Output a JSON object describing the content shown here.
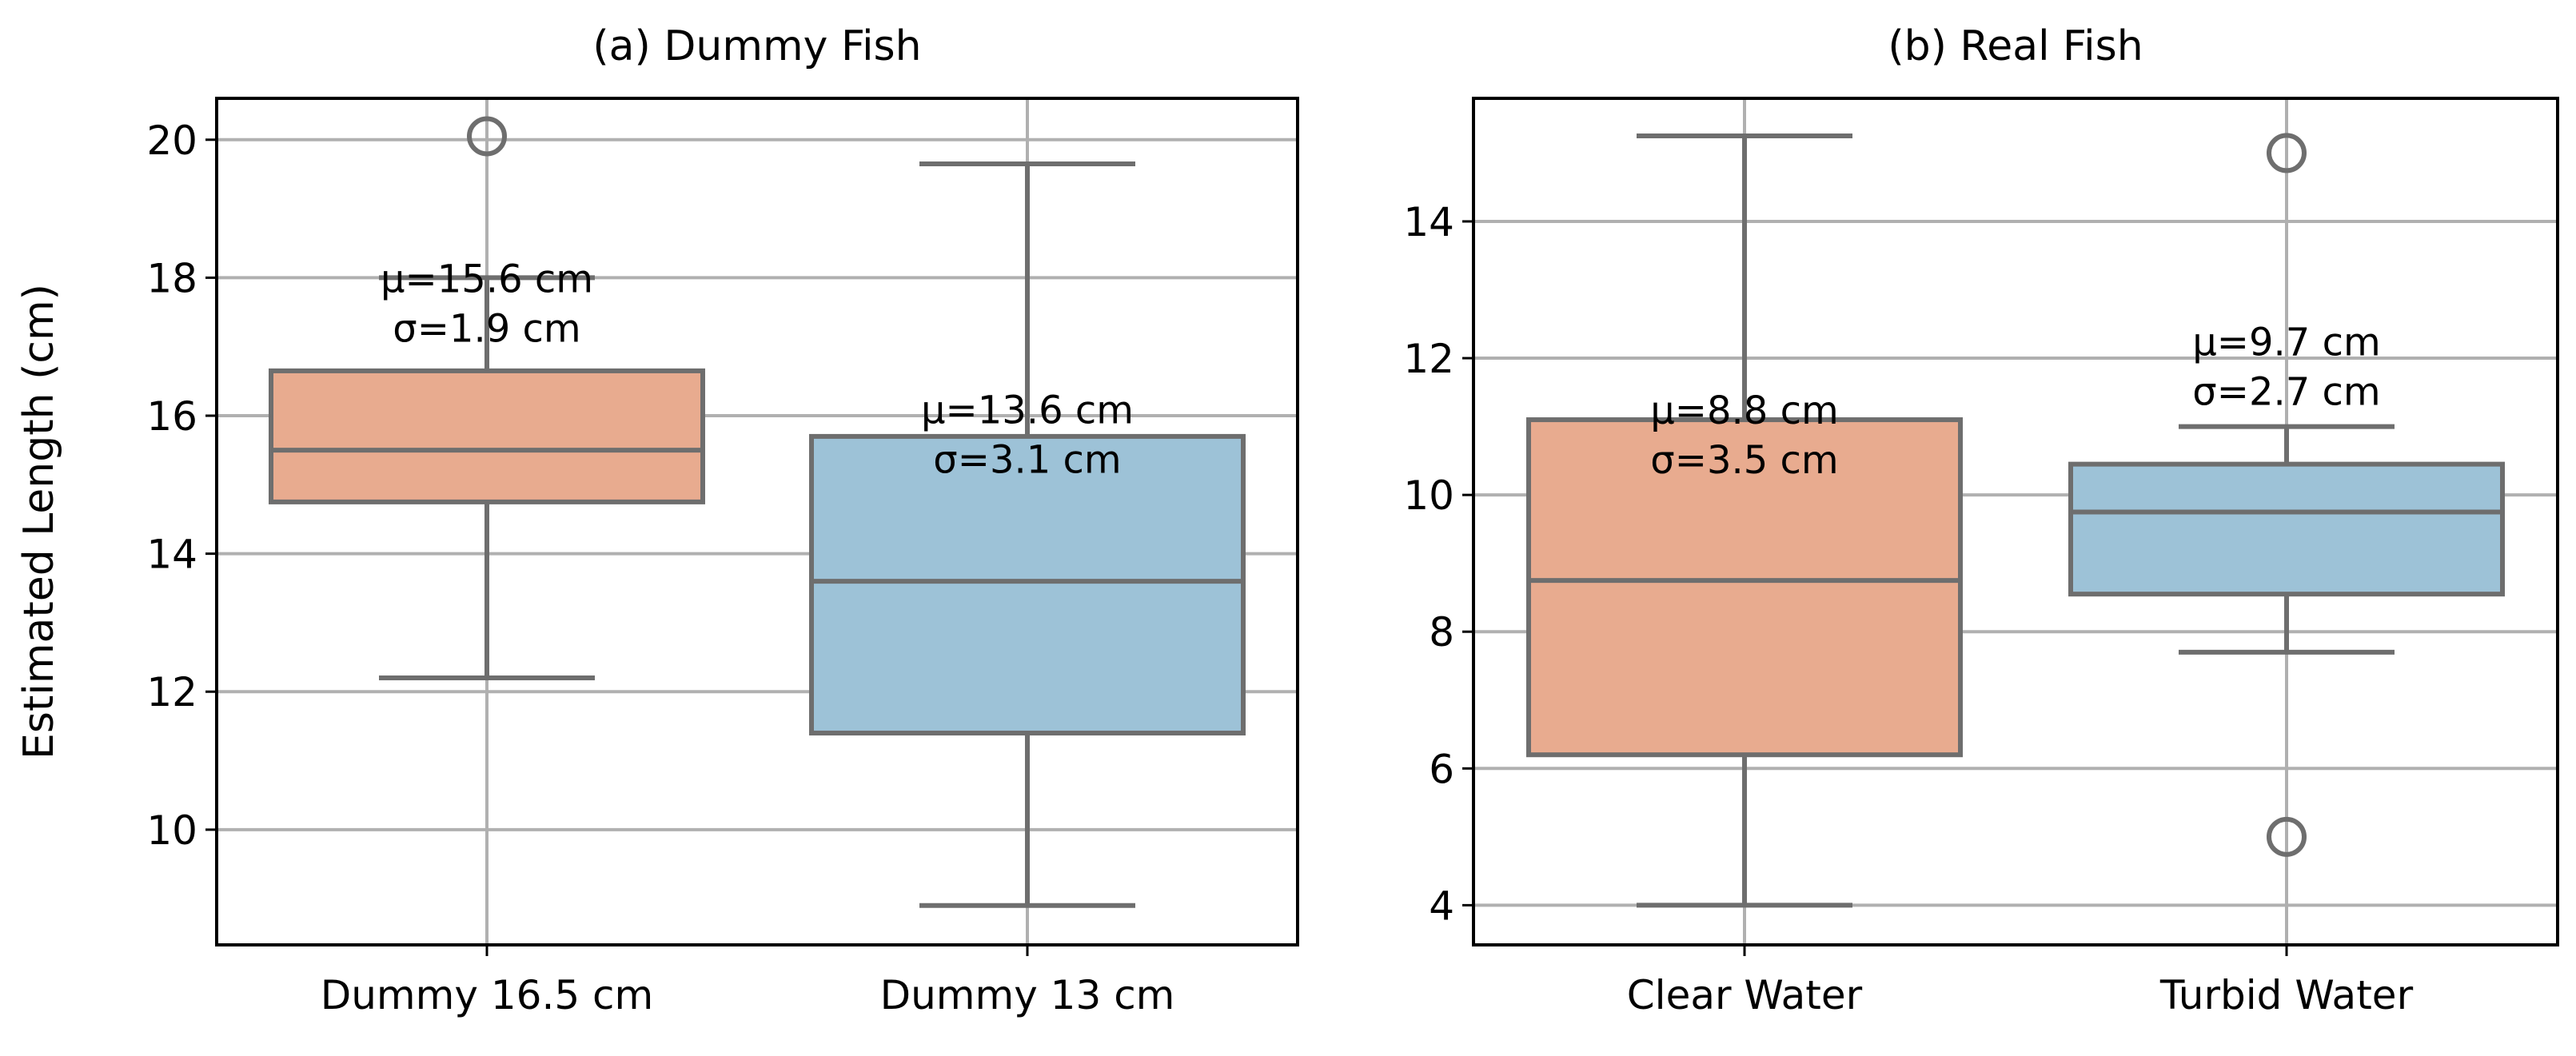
{
  "chart_data": [
    {
      "type": "box",
      "title": "(a) Dummy Fish",
      "ylabel": "Estimated Length (cm)",
      "categories": [
        "Dummy 16.5 cm",
        "Dummy 13 cm"
      ],
      "colors": [
        "#e8ab8f",
        "#9dc2d7"
      ],
      "boxes": [
        {
          "whislo": 12.2,
          "q1": 14.75,
          "median": 15.5,
          "q3": 16.65,
          "whishi": 18.0,
          "fliers": [
            20.05
          ]
        },
        {
          "whislo": 8.9,
          "q1": 11.4,
          "median": 13.6,
          "q3": 15.7,
          "whishi": 19.65,
          "fliers": []
        }
      ],
      "annotations": [
        [
          "μ=15.6 cm",
          "σ=1.9 cm"
        ],
        [
          "μ=13.6 cm",
          "σ=3.1 cm"
        ]
      ],
      "ylim": [
        8.33,
        20.6
      ],
      "yticks": [
        10,
        12,
        14,
        16,
        18,
        20
      ],
      "grid": true
    },
    {
      "type": "box",
      "title": "(b) Real Fish",
      "categories": [
        "Clear Water",
        "Turbid Water"
      ],
      "colors": [
        "#e8ab8f",
        "#9dc2d7"
      ],
      "boxes": [
        {
          "whislo": 4.0,
          "q1": 6.2,
          "median": 8.75,
          "q3": 11.1,
          "whishi": 15.25,
          "fliers": []
        },
        {
          "whislo": 7.7,
          "q1": 8.55,
          "median": 9.75,
          "q3": 10.45,
          "whishi": 11.0,
          "fliers": [
            15.0,
            5.0
          ]
        }
      ],
      "annotations": [
        [
          "μ=8.8 cm",
          "σ=3.5 cm"
        ],
        [
          "μ=9.7 cm",
          "σ=2.7 cm"
        ]
      ],
      "ylim": [
        3.42,
        15.8
      ],
      "yticks": [
        4,
        6,
        8,
        10,
        12,
        14
      ],
      "grid": true
    }
  ]
}
